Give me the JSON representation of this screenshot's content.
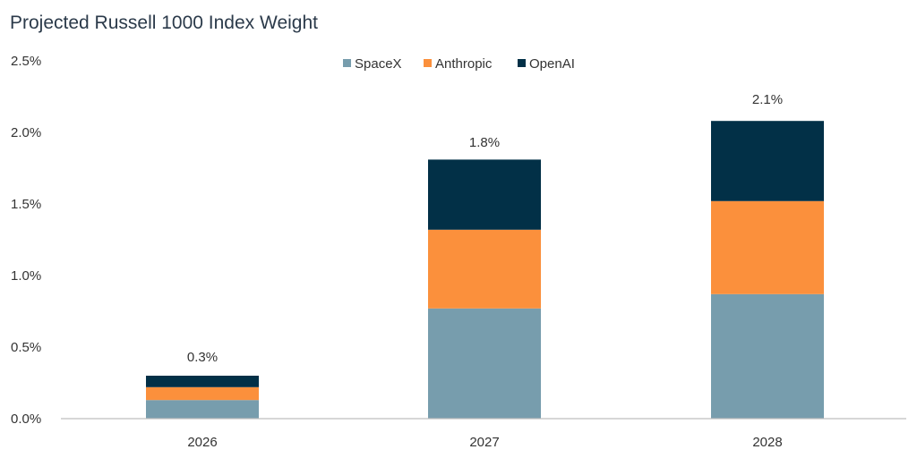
{
  "chart_data": {
    "type": "bar",
    "stacked": true,
    "title": "Projected Russell 1000 Index Weight",
    "xlabel": "",
    "ylabel": "",
    "categories": [
      "2026",
      "2027",
      "2028"
    ],
    "ylim": [
      0,
      2.5
    ],
    "yticks": [
      0,
      0.5,
      1.0,
      1.5,
      2.0,
      2.5
    ],
    "ytick_labels": [
      "0.0%",
      "0.5%",
      "1.0%",
      "1.5%",
      "2.0%",
      "2.5%"
    ],
    "series": [
      {
        "name": "SpaceX",
        "values": [
          0.13,
          0.77,
          0.87
        ],
        "color": "#779dad"
      },
      {
        "name": "Anthropic",
        "values": [
          0.09,
          0.55,
          0.65
        ],
        "color": "#fb903c"
      },
      {
        "name": "OpenAI",
        "values": [
          0.08,
          0.49,
          0.56
        ],
        "color": "#023047"
      }
    ],
    "totals": [
      0.3,
      1.8,
      2.1
    ],
    "total_labels": [
      "0.3%",
      "1.8%",
      "2.1%"
    ],
    "grid": false,
    "legend_position": "top-center"
  }
}
